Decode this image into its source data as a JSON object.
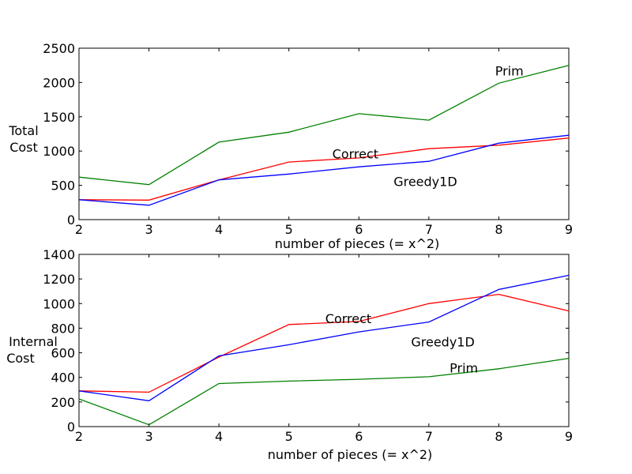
{
  "chart_data": [
    {
      "type": "line",
      "xlabel": "number of pieces (= x^2)",
      "ylabel": [
        "Total",
        "Cost"
      ],
      "x": [
        2,
        3,
        4,
        5,
        6,
        7,
        8,
        9
      ],
      "xlim": [
        2,
        9
      ],
      "ylim": [
        0,
        2500
      ],
      "xticks": [
        2,
        3,
        4,
        5,
        6,
        7,
        8,
        9
      ],
      "yticks": [
        0,
        500,
        1000,
        1500,
        2000,
        2500
      ],
      "grid": false,
      "series": [
        {
          "name": "Correct",
          "color": "#ff0000",
          "values": [
            290,
            285,
            580,
            840,
            900,
            1035,
            1085,
            1190
          ]
        },
        {
          "name": "Greedy1D",
          "color": "#0000ff",
          "values": [
            290,
            210,
            580,
            665,
            770,
            850,
            1115,
            1230
          ]
        },
        {
          "name": "Prim",
          "color": "#008000",
          "values": [
            620,
            510,
            1130,
            1275,
            1545,
            1450,
            1990,
            2250
          ]
        }
      ],
      "annotations": [
        {
          "text": "Correct",
          "x": 5.95,
          "y": 960,
          "color": "#ff0000"
        },
        {
          "text": "Greedy1D",
          "x": 6.95,
          "y": 560,
          "color": "#0000ff"
        },
        {
          "text": "Prim",
          "x": 8.15,
          "y": 2170,
          "color": "#008000"
        }
      ]
    },
    {
      "type": "line",
      "xlabel": "number of pieces (= x^2)",
      "ylabel": [
        "Internal",
        "Cost"
      ],
      "x": [
        2,
        3,
        4,
        5,
        6,
        7,
        8,
        9
      ],
      "xlim": [
        2,
        9
      ],
      "ylim": [
        0,
        1400
      ],
      "xticks": [
        2,
        3,
        4,
        5,
        6,
        7,
        8,
        9
      ],
      "yticks": [
        0,
        200,
        400,
        600,
        800,
        1000,
        1200,
        1400
      ],
      "grid": false,
      "series": [
        {
          "name": "Correct",
          "color": "#ff0000",
          "values": [
            290,
            280,
            565,
            830,
            855,
            1000,
            1075,
            940
          ]
        },
        {
          "name": "Greedy1D",
          "color": "#0000ff",
          "values": [
            290,
            210,
            575,
            665,
            770,
            850,
            1115,
            1230
          ]
        },
        {
          "name": "Prim",
          "color": "#008000",
          "values": [
            225,
            15,
            350,
            370,
            385,
            405,
            470,
            555
          ]
        }
      ],
      "annotations": [
        {
          "text": "Correct",
          "x": 5.85,
          "y": 880,
          "color": "#ff0000"
        },
        {
          "text": "Greedy1D",
          "x": 7.2,
          "y": 690,
          "color": "#0000ff"
        },
        {
          "text": "Prim",
          "x": 7.5,
          "y": 480,
          "color": "#008000"
        }
      ]
    }
  ]
}
